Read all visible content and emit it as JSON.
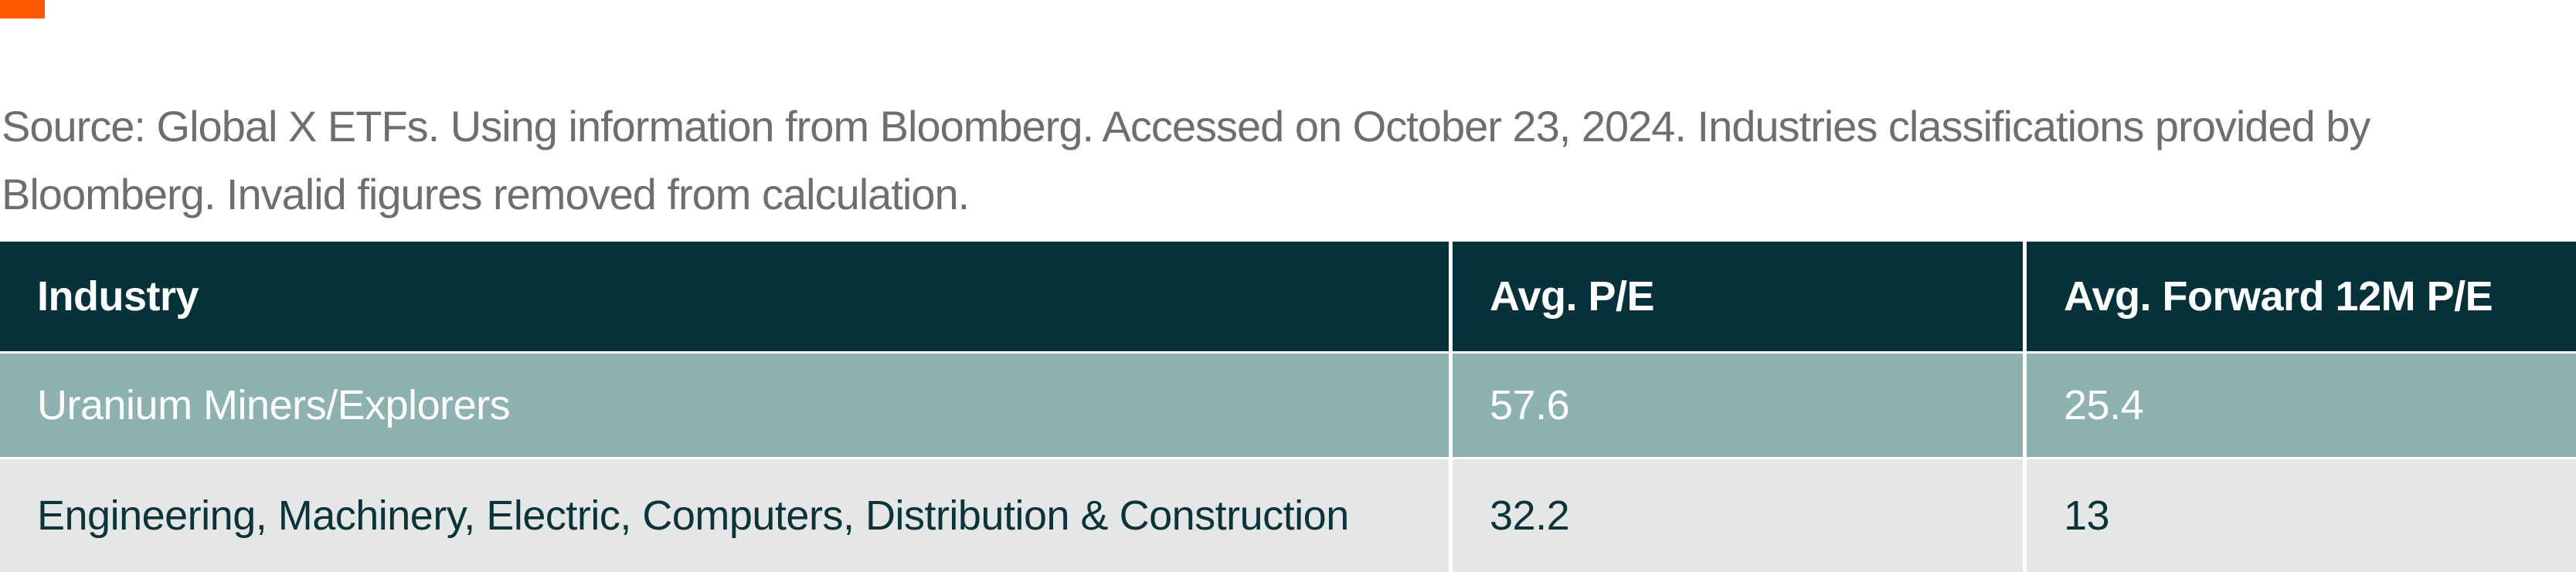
{
  "brand": {
    "accent_color": "#FF5A00"
  },
  "source_note": {
    "text": "Source: Global X ETFs. Using information from Bloomberg. Accessed on October 23, 2024. Industries classifications provided by Bloomberg. Invalid figures removed from calculation.",
    "text_color": "#6D6E70"
  },
  "table": {
    "columns": [
      {
        "label": "Industry"
      },
      {
        "label": "Avg. P/E"
      },
      {
        "label": "Avg. Forward 12M P/E"
      }
    ],
    "rows": [
      {
        "industry": "Uranium Miners/Explorers",
        "avg_pe": "57.6",
        "avg_forward_12m_pe": "25.4"
      },
      {
        "industry": "Engineering, Machinery, Electric, Computers, Distribution & Construction",
        "avg_pe": "32.2",
        "avg_forward_12m_pe": "13"
      }
    ],
    "style": {
      "header_bg": "#05313A",
      "header_text": "#FFFFFF",
      "row_odd_bg": "#8EB2AF",
      "row_odd_text": "#FFFFFF",
      "row_even_bg": "#E5E6E6",
      "row_even_text": "#0B333A",
      "divider_color": "#FFFFFF"
    }
  }
}
